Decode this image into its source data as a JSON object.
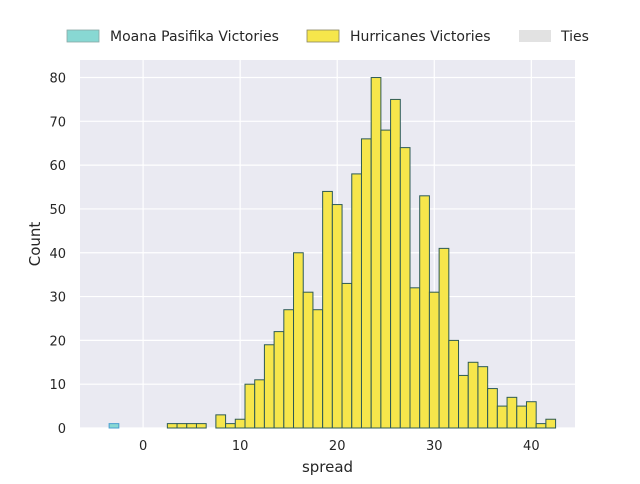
{
  "chart_data": {
    "type": "bar",
    "title": "",
    "xlabel": "spread",
    "ylabel": "Count",
    "xlim": [
      -6.5,
      44.5
    ],
    "ylim": [
      0,
      84
    ],
    "xticks": [
      0,
      10,
      20,
      30,
      40
    ],
    "yticks": [
      0,
      10,
      20,
      30,
      40,
      50,
      60,
      70,
      80
    ],
    "grid": true,
    "legend_position": "top",
    "bin_width": 1,
    "series": [
      {
        "name": "Moana Pasifika Victories",
        "color": "#88d8d3",
        "bins": [
          {
            "x": -3,
            "count": 1
          }
        ]
      },
      {
        "name": "Hurricanes Victories",
        "color": "#f6e64b",
        "bins": [
          {
            "x": 3,
            "count": 1
          },
          {
            "x": 4,
            "count": 1
          },
          {
            "x": 5,
            "count": 1
          },
          {
            "x": 6,
            "count": 1
          },
          {
            "x": 8,
            "count": 3
          },
          {
            "x": 9,
            "count": 1
          },
          {
            "x": 10,
            "count": 2
          },
          {
            "x": 11,
            "count": 10
          },
          {
            "x": 12,
            "count": 11
          },
          {
            "x": 13,
            "count": 19
          },
          {
            "x": 14,
            "count": 22
          },
          {
            "x": 15,
            "count": 27
          },
          {
            "x": 16,
            "count": 40
          },
          {
            "x": 17,
            "count": 31
          },
          {
            "x": 18,
            "count": 27
          },
          {
            "x": 19,
            "count": 54
          },
          {
            "x": 20,
            "count": 51
          },
          {
            "x": 21,
            "count": 33
          },
          {
            "x": 22,
            "count": 58
          },
          {
            "x": 23,
            "count": 66
          },
          {
            "x": 24,
            "count": 80
          },
          {
            "x": 25,
            "count": 68
          },
          {
            "x": 26,
            "count": 75
          },
          {
            "x": 27,
            "count": 64
          },
          {
            "x": 28,
            "count": 32
          },
          {
            "x": 29,
            "count": 53
          },
          {
            "x": 30,
            "count": 31
          },
          {
            "x": 31,
            "count": 41
          },
          {
            "x": 32,
            "count": 20
          },
          {
            "x": 33,
            "count": 12
          },
          {
            "x": 34,
            "count": 15
          },
          {
            "x": 35,
            "count": 14
          },
          {
            "x": 36,
            "count": 9
          },
          {
            "x": 37,
            "count": 5
          },
          {
            "x": 38,
            "count": 7
          },
          {
            "x": 39,
            "count": 5
          },
          {
            "x": 40,
            "count": 6
          },
          {
            "x": 41,
            "count": 1
          },
          {
            "x": 42,
            "count": 2
          }
        ]
      },
      {
        "name": "Ties",
        "color": "#e2e2e2",
        "bins": []
      }
    ]
  }
}
